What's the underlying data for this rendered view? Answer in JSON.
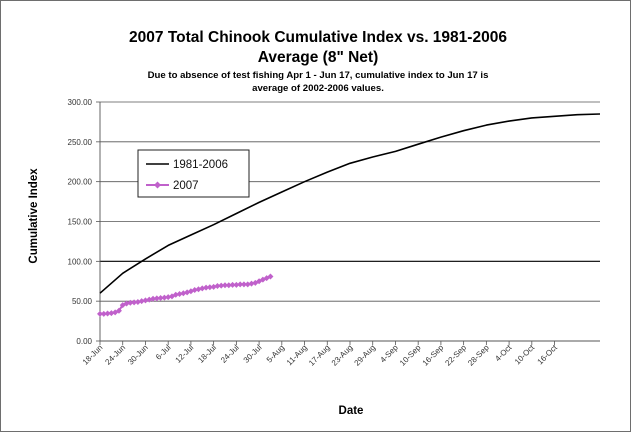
{
  "chart_data": {
    "type": "line",
    "title_line1": "2007 Total Chinook  Cumulative Index vs. 1981-2006",
    "title_line2": "Average (8\" Net)",
    "subtitle_line1": "Due to absence of test fishing Apr 1 - Jun 17, cumulative index to Jun 17 is",
    "subtitle_line2": "average of 2002-2006 values.",
    "xlabel": "Date",
    "ylabel": "Cumulative Index",
    "ylim": [
      0,
      300
    ],
    "yticks": [
      "0.00",
      "50.00",
      "100.00",
      "150.00",
      "200.00",
      "250.00",
      "300.00"
    ],
    "x_tick_labels": [
      "18-Jun",
      "24-Jun",
      "30-Jun",
      "6-Jul",
      "12-Jul",
      "18-Jul",
      "24-Jul",
      "30-Jul",
      "5-Aug",
      "11-Aug",
      "17-Aug",
      "23-Aug",
      "29-Aug",
      "4-Sep",
      "10-Sep",
      "16-Sep",
      "22-Sep",
      "28-Sep",
      "4-Oct",
      "10-Oct",
      "16-Oct"
    ],
    "grid": true,
    "legend_placement": "upper-left",
    "series": [
      {
        "name": "1981-2006",
        "color": "#000000",
        "marker": "none",
        "x": [
          "18-Jun",
          "24-Jun",
          "30-Jun",
          "6-Jul",
          "12-Jul",
          "18-Jul",
          "24-Jul",
          "30-Jul",
          "5-Aug",
          "11-Aug",
          "17-Aug",
          "23-Aug",
          "29-Aug",
          "4-Sep",
          "10-Sep",
          "16-Sep",
          "22-Sep",
          "28-Sep",
          "4-Oct",
          "10-Oct",
          "16-Oct",
          "22-Oct",
          "28-Oct"
        ],
        "values": [
          60,
          85,
          103,
          120,
          133,
          146,
          160,
          174,
          187,
          200,
          212,
          223,
          231,
          238,
          247,
          256,
          264,
          271,
          276,
          280,
          282,
          284,
          285
        ]
      },
      {
        "name": "2007",
        "color": "#c061cb",
        "marker": "diamond",
        "x": [
          "18-Jun",
          "19-Jun",
          "20-Jun",
          "21-Jun",
          "22-Jun",
          "23-Jun",
          "24-Jun",
          "25-Jun",
          "26-Jun",
          "27-Jun",
          "28-Jun",
          "29-Jun",
          "30-Jun",
          "1-Jul",
          "2-Jul",
          "3-Jul",
          "4-Jul",
          "5-Jul",
          "6-Jul",
          "7-Jul",
          "8-Jul",
          "9-Jul",
          "10-Jul",
          "11-Jul",
          "12-Jul",
          "13-Jul",
          "14-Jul",
          "15-Jul",
          "16-Jul",
          "17-Jul",
          "18-Jul",
          "19-Jul",
          "20-Jul",
          "21-Jul",
          "22-Jul",
          "23-Jul",
          "24-Jul",
          "25-Jul",
          "26-Jul",
          "27-Jul",
          "28-Jul",
          "29-Jul",
          "30-Jul",
          "31-Jul",
          "1-Aug",
          "2-Aug"
        ],
        "values": [
          34,
          34,
          34.5,
          35,
          36,
          38,
          45,
          47,
          48,
          48.5,
          49,
          50,
          51,
          52,
          53,
          53.5,
          54,
          54.5,
          55,
          56,
          58,
          59,
          60,
          61,
          62.5,
          64,
          65,
          66,
          67,
          67.5,
          68,
          69,
          69.5,
          70,
          70,
          70.5,
          70.5,
          71,
          71,
          71,
          72,
          73,
          75,
          77,
          79,
          81
        ]
      }
    ]
  }
}
